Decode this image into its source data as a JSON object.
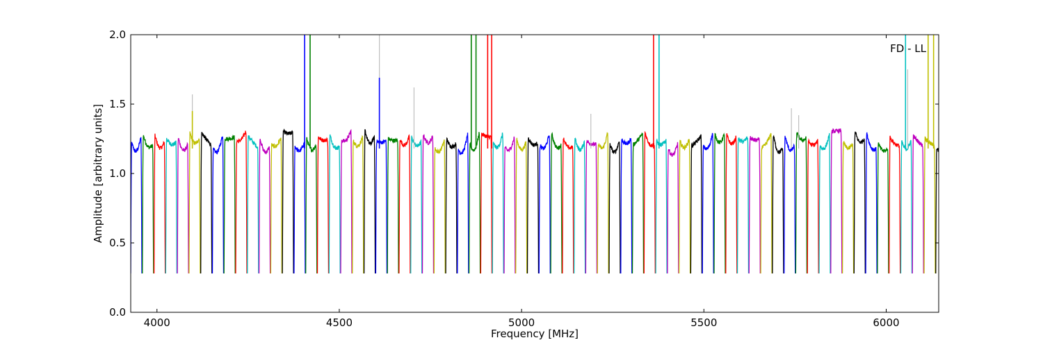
{
  "chart_data": {
    "type": "line",
    "title": "",
    "xlabel": "Frequency [MHz]",
    "ylabel": "Amplitude [arbitrary units]",
    "annotation": "FD - LL",
    "xlim": [
      3928,
      6144
    ],
    "ylim": [
      0.0,
      2.0
    ],
    "xticks": [
      4000,
      4500,
      5000,
      5500,
      6000
    ],
    "yticks": [
      0.0,
      0.5,
      1.0,
      1.5,
      2.0
    ],
    "xtick_labels": [
      "4000",
      "4500",
      "5000",
      "5500",
      "6000"
    ],
    "ytick_labels": [
      "0.0",
      "0.5",
      "1.0",
      "1.5",
      "2.0"
    ],
    "grid": false,
    "legend": "none",
    "background_series_color": "#bebebe",
    "color_cycle": [
      "#0000ff",
      "#008000",
      "#ff0000",
      "#00bfbf",
      "#bf00bf",
      "#bfbf00",
      "#000000"
    ],
    "channel_width_mhz": 32,
    "channel_start_mhz": 3928,
    "channel_count": 70,
    "typical_plateau": 1.18,
    "edge_minimum": 0.28,
    "spikes": [
      {
        "x": 4097,
        "y": 1.57,
        "series": "background"
      },
      {
        "x": 4097,
        "y": 1.45,
        "series": "foreground"
      },
      {
        "x": 4405,
        "y": 2.0,
        "series": "foreground"
      },
      {
        "x": 4420,
        "y": 2.0,
        "series": "foreground"
      },
      {
        "x": 4610,
        "y": 2.0,
        "series": "background"
      },
      {
        "x": 4610,
        "y": 1.69,
        "series": "foreground"
      },
      {
        "x": 4705,
        "y": 1.62,
        "series": "background"
      },
      {
        "x": 4862,
        "y": 2.0,
        "series": "foreground"
      },
      {
        "x": 4875,
        "y": 2.0,
        "series": "foreground"
      },
      {
        "x": 4907,
        "y": 2.0,
        "series": "foreground"
      },
      {
        "x": 4918,
        "y": 2.0,
        "series": "foreground"
      },
      {
        "x": 5190,
        "y": 1.43,
        "series": "background"
      },
      {
        "x": 5362,
        "y": 2.0,
        "series": "foreground"
      },
      {
        "x": 5377,
        "y": 2.0,
        "series": "foreground"
      },
      {
        "x": 5740,
        "y": 1.47,
        "series": "background"
      },
      {
        "x": 5760,
        "y": 1.42,
        "series": "background"
      },
      {
        "x": 6053,
        "y": 2.0,
        "series": "foreground"
      },
      {
        "x": 6059,
        "y": 1.75,
        "series": "background"
      },
      {
        "x": 6115,
        "y": 2.0,
        "series": "foreground"
      },
      {
        "x": 6130,
        "y": 2.0,
        "series": "foreground"
      }
    ]
  }
}
